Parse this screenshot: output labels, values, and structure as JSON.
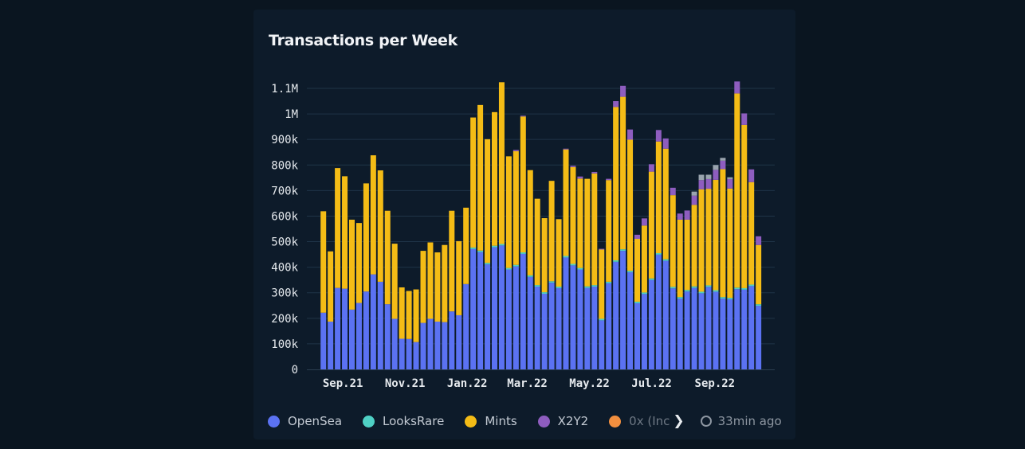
{
  "chart_data": {
    "type": "bar",
    "stacked": true,
    "title": "Transactions per Week",
    "xlabel": "",
    "ylabel": "",
    "ylim": [
      0,
      1100000
    ],
    "y_ticks": [
      0,
      100000,
      200000,
      300000,
      400000,
      500000,
      600000,
      700000,
      800000,
      900000,
      1000000,
      1100000
    ],
    "y_tick_labels": [
      "0",
      "100k",
      "200k",
      "300k",
      "400k",
      "500k",
      "600k",
      "700k",
      "800k",
      "900k",
      "1M",
      "1.1M"
    ],
    "x_ticks": [
      "2021-09-01",
      "2021-11-01",
      "2022-01-01",
      "2022-03-01",
      "2022-05-01",
      "2022-07-01",
      "2022-09-01"
    ],
    "x_tick_labels": [
      "Sep.21",
      "Nov.21",
      "Jan.22",
      "Mar.22",
      "May.22",
      "Jul.22",
      "Sep.22"
    ],
    "grid": true,
    "legend_placement": "bottom",
    "categories": [
      "2021-08-16",
      "2021-08-23",
      "2021-08-30",
      "2021-09-06",
      "2021-09-13",
      "2021-09-20",
      "2021-09-27",
      "2021-10-04",
      "2021-10-11",
      "2021-10-18",
      "2021-10-25",
      "2021-11-01",
      "2021-11-08",
      "2021-11-15",
      "2021-11-22",
      "2021-11-29",
      "2021-12-06",
      "2021-12-13",
      "2021-12-20",
      "2021-12-27",
      "2022-01-03",
      "2022-01-10",
      "2022-01-17",
      "2022-01-24",
      "2022-01-31",
      "2022-02-07",
      "2022-02-14",
      "2022-02-21",
      "2022-02-28",
      "2022-03-07",
      "2022-03-14",
      "2022-03-21",
      "2022-03-28",
      "2022-04-04",
      "2022-04-11",
      "2022-04-18",
      "2022-04-25",
      "2022-05-02",
      "2022-05-09",
      "2022-05-16",
      "2022-05-23",
      "2022-05-30",
      "2022-06-06",
      "2022-06-13",
      "2022-06-20",
      "2022-06-27",
      "2022-07-04",
      "2022-07-11",
      "2022-07-18",
      "2022-07-25",
      "2022-08-01",
      "2022-08-08",
      "2022-08-15",
      "2022-08-22",
      "2022-08-29",
      "2022-09-05",
      "2022-09-12",
      "2022-09-19",
      "2022-09-26",
      "2022-10-03",
      "2022-10-10",
      "2022-10-17"
    ],
    "series": [
      {
        "name": "OpenSea",
        "color": "#5b72f2",
        "values": [
          222000,
          187000,
          319000,
          316000,
          234000,
          260000,
          305000,
          372000,
          343000,
          255000,
          198000,
          120000,
          119000,
          107000,
          182000,
          198000,
          187000,
          185000,
          227000,
          212000,
          334000,
          471000,
          459000,
          411000,
          478000,
          485000,
          391000,
          403000,
          452000,
          362000,
          324000,
          296000,
          339000,
          318000,
          438000,
          407000,
          391000,
          319000,
          324000,
          192000,
          337000,
          421000,
          464000,
          380000,
          259000,
          295000,
          350000,
          449000,
          425000,
          317000,
          277000,
          305000,
          319000,
          298000,
          323000,
          304000,
          277000,
          274000,
          314000,
          312000,
          326000,
          249000
        ]
      },
      {
        "name": "LooksRare",
        "color": "#4fd1c5",
        "values": [
          0,
          0,
          0,
          0,
          0,
          0,
          0,
          0,
          0,
          0,
          0,
          0,
          0,
          0,
          0,
          0,
          0,
          0,
          0,
          0,
          0,
          6000,
          6000,
          6000,
          6000,
          6000,
          6000,
          6000,
          6000,
          6000,
          6000,
          6000,
          6000,
          6000,
          6000,
          6000,
          6000,
          6000,
          6000,
          6000,
          6000,
          6000,
          6000,
          6000,
          6000,
          6000,
          6000,
          6000,
          6000,
          6000,
          6000,
          6000,
          6000,
          6000,
          6000,
          6000,
          6000,
          6000,
          6000,
          6000,
          6000,
          6000
        ]
      },
      {
        "name": "Mints",
        "color": "#f4bc16",
        "values": [
          397000,
          275000,
          469000,
          440000,
          352000,
          313000,
          423000,
          466000,
          436000,
          366000,
          294000,
          201000,
          188000,
          206000,
          282000,
          299000,
          271000,
          302000,
          394000,
          290000,
          299000,
          509000,
          570000,
          484000,
          523000,
          633000,
          437000,
          445000,
          532000,
          412000,
          338000,
          290000,
          393000,
          264000,
          417000,
          379000,
          350000,
          421000,
          437000,
          271000,
          398000,
          600000,
          597000,
          513000,
          246000,
          262000,
          418000,
          437000,
          433000,
          359000,
          303000,
          275000,
          319000,
          401000,
          378000,
          432000,
          501000,
          428000,
          760000,
          639000,
          401000,
          232000
        ]
      },
      {
        "name": "X2Y2",
        "color": "#8e5dbf",
        "values": [
          0,
          0,
          0,
          0,
          0,
          0,
          0,
          0,
          0,
          0,
          0,
          0,
          0,
          0,
          0,
          0,
          0,
          0,
          0,
          0,
          0,
          0,
          0,
          0,
          0,
          0,
          0,
          5000,
          3000,
          0,
          0,
          0,
          0,
          0,
          3000,
          5000,
          8000,
          0,
          6000,
          3000,
          5000,
          23000,
          43000,
          40000,
          16000,
          28000,
          29000,
          45000,
          40000,
          29000,
          24000,
          36000,
          36000,
          36000,
          38000,
          39000,
          33000,
          37000,
          47000,
          45000,
          50000,
          34000
        ]
      },
      {
        "name": "0x (Inc",
        "color": "#f28f3f",
        "values": [
          0,
          0,
          0,
          0,
          0,
          0,
          0,
          0,
          0,
          0,
          0,
          0,
          0,
          0,
          0,
          0,
          0,
          0,
          0,
          0,
          0,
          0,
          0,
          0,
          0,
          0,
          0,
          0,
          0,
          0,
          0,
          0,
          0,
          0,
          0,
          0,
          0,
          0,
          0,
          0,
          0,
          0,
          0,
          0,
          0,
          0,
          0,
          0,
          0,
          0,
          0,
          0,
          0,
          0,
          0,
          0,
          0,
          0,
          0,
          0,
          0,
          0
        ]
      },
      {
        "color": "#9aa4ae",
        "values": [
          0,
          0,
          0,
          0,
          0,
          0,
          0,
          0,
          0,
          0,
          0,
          0,
          0,
          0,
          0,
          0,
          0,
          0,
          0,
          0,
          0,
          0,
          0,
          0,
          0,
          0,
          0,
          0,
          0,
          0,
          0,
          0,
          0,
          0,
          0,
          0,
          0,
          0,
          0,
          0,
          0,
          0,
          0,
          0,
          0,
          0,
          0,
          0,
          0,
          0,
          0,
          0,
          16000,
          21000,
          17000,
          19000,
          11000,
          7000,
          0,
          0,
          0,
          0
        ]
      }
    ]
  },
  "legend": {
    "items": [
      {
        "label": "OpenSea",
        "color": "#5b72f2"
      },
      {
        "label": "LooksRare",
        "color": "#4fd1c5"
      },
      {
        "label": "Mints",
        "color": "#f4bc16"
      },
      {
        "label": "X2Y2",
        "color": "#8e5dbf"
      },
      {
        "label": "0x (Inc",
        "color": "#f28f3f"
      }
    ],
    "more_icon": "chevron-right-icon",
    "updated_icon": "refresh-clock-icon",
    "updated": "33min ago"
  }
}
